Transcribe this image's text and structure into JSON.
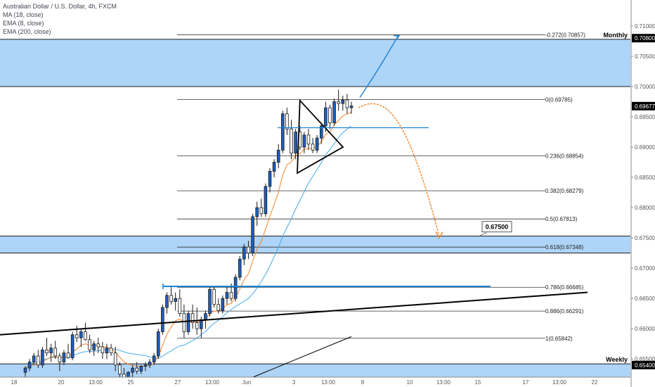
{
  "legend": {
    "title": "Australian Dollar / U.S. Dollar, 4h, FXCM",
    "ind1": "MA (18, close)",
    "ind2": "EMA (8, close)",
    "ind3": "EMA (200, close)"
  },
  "colors": {
    "zone": "#aed4f7",
    "up": "#1f5fbf",
    "down": "#ffffff",
    "ema8": "#f0862a",
    "ma18": "#45a9ea",
    "projection_up": "#1a84d6",
    "projection_down": "#f0862a",
    "axis_box": "#000000"
  },
  "chart_data": {
    "type": "candlestick",
    "symbol": "Australian Dollar / U.S. Dollar, 4h, FXCM",
    "y_ticks": [
      0.655,
      0.66,
      0.665,
      0.67,
      0.675,
      0.68,
      0.685,
      0.69,
      0.695,
      0.7,
      0.705,
      0.71
    ],
    "y_tick_labels": [
      "0.65500",
      "0.66000",
      "0.66500",
      "0.67000",
      "0.67500",
      "0.68000",
      "0.68500",
      "0.69000",
      "0.69500",
      "0.70000",
      "0.70500",
      "0.71000"
    ],
    "ylim": [
      0.652,
      0.7143
    ],
    "x_ticks": [
      "18",
      "20",
      "13:00",
      "25",
      "27",
      "13:00",
      "Jun",
      "3",
      "13:00",
      "8",
      "10",
      "13:00",
      "15",
      "17",
      "13:00",
      "22"
    ],
    "axis_price_labels": [
      {
        "text": "0.70800",
        "price": 0.708
      },
      {
        "text": "0.69677",
        "price": 0.69677
      },
      {
        "text": "0.65400",
        "price": 0.654
      }
    ],
    "zones": [
      {
        "label": "Monthly",
        "top": 0.7078,
        "bottom": 0.7
      },
      {
        "label": "",
        "top": 0.6753,
        "bottom": 0.6725
      },
      {
        "label": "Weekly",
        "top": 0.6542,
        "bottom": 0.651
      }
    ],
    "fib_levels": [
      {
        "label": "-0.272(0.70857)",
        "price": 0.70857
      },
      {
        "label": "0(0.69785)",
        "price": 0.69785
      },
      {
        "label": "0.236(0.68854)",
        "price": 0.68854
      },
      {
        "label": "0.382(0.68279)",
        "price": 0.68279
      },
      {
        "label": "0.5(0.67813)",
        "price": 0.67813
      },
      {
        "label": "0.618(0.67348)",
        "price": 0.67348
      },
      {
        "label": "0.786(0.66685)",
        "price": 0.66685
      },
      {
        "label": "0.886(0.66291)",
        "price": 0.66291
      },
      {
        "label": "1(0.65842)",
        "price": 0.65842
      }
    ],
    "callout": {
      "text": "0.67500",
      "price": 0.675
    },
    "candles": [
      [
        0.6528,
        0.6538,
        0.652,
        0.6535
      ],
      [
        0.6535,
        0.655,
        0.653,
        0.6545
      ],
      [
        0.6545,
        0.656,
        0.654,
        0.6555
      ],
      [
        0.6555,
        0.6565,
        0.6535,
        0.654
      ],
      [
        0.654,
        0.657,
        0.6535,
        0.6565
      ],
      [
        0.6565,
        0.6585,
        0.6555,
        0.656
      ],
      [
        0.656,
        0.6575,
        0.6545,
        0.6568
      ],
      [
        0.6568,
        0.658,
        0.655,
        0.6555
      ],
      [
        0.6555,
        0.656,
        0.653,
        0.6545
      ],
      [
        0.6545,
        0.6565,
        0.654,
        0.656
      ],
      [
        0.656,
        0.6575,
        0.655,
        0.6552
      ],
      [
        0.6552,
        0.6595,
        0.6548,
        0.659
      ],
      [
        0.659,
        0.6605,
        0.6578,
        0.6585
      ],
      [
        0.6585,
        0.66,
        0.657,
        0.6595
      ],
      [
        0.6595,
        0.661,
        0.658,
        0.6582
      ],
      [
        0.6582,
        0.659,
        0.656,
        0.6565
      ],
      [
        0.6565,
        0.658,
        0.6555,
        0.6575
      ],
      [
        0.6575,
        0.6585,
        0.656,
        0.657
      ],
      [
        0.657,
        0.6578,
        0.655,
        0.656
      ],
      [
        0.656,
        0.6575,
        0.655,
        0.6568
      ],
      [
        0.6568,
        0.6575,
        0.6555,
        0.656
      ],
      [
        0.656,
        0.657,
        0.653,
        0.654
      ],
      [
        0.654,
        0.6545,
        0.6515,
        0.6525
      ],
      [
        0.6525,
        0.6535,
        0.6512,
        0.6518
      ],
      [
        0.6518,
        0.653,
        0.6515,
        0.6528
      ],
      [
        0.6528,
        0.654,
        0.652,
        0.6535
      ],
      [
        0.6535,
        0.6545,
        0.6525,
        0.653
      ],
      [
        0.653,
        0.654,
        0.6525,
        0.6538
      ],
      [
        0.6538,
        0.6545,
        0.653,
        0.654
      ],
      [
        0.654,
        0.655,
        0.6535,
        0.6545
      ],
      [
        0.6545,
        0.656,
        0.654,
        0.6555
      ],
      [
        0.6555,
        0.66,
        0.655,
        0.6595
      ],
      [
        0.6595,
        0.664,
        0.659,
        0.6635
      ],
      [
        0.6635,
        0.666,
        0.6625,
        0.6655
      ],
      [
        0.6655,
        0.667,
        0.664,
        0.6645
      ],
      [
        0.6645,
        0.666,
        0.663,
        0.665
      ],
      [
        0.665,
        0.6665,
        0.662,
        0.6625
      ],
      [
        0.6625,
        0.664,
        0.6585,
        0.6595
      ],
      [
        0.6595,
        0.663,
        0.659,
        0.6625
      ],
      [
        0.6625,
        0.664,
        0.66,
        0.661
      ],
      [
        0.661,
        0.6635,
        0.659,
        0.66
      ],
      [
        0.66,
        0.662,
        0.6585,
        0.6615
      ],
      [
        0.6615,
        0.663,
        0.66,
        0.6625
      ],
      [
        0.6625,
        0.667,
        0.662,
        0.6665
      ],
      [
        0.6665,
        0.667,
        0.6635,
        0.664
      ],
      [
        0.664,
        0.665,
        0.6625,
        0.663
      ],
      [
        0.663,
        0.6655,
        0.6625,
        0.665
      ],
      [
        0.665,
        0.667,
        0.664,
        0.666
      ],
      [
        0.666,
        0.6675,
        0.6645,
        0.665
      ],
      [
        0.665,
        0.669,
        0.6645,
        0.6685
      ],
      [
        0.6685,
        0.672,
        0.668,
        0.6715
      ],
      [
        0.6715,
        0.674,
        0.6705,
        0.6735
      ],
      [
        0.6735,
        0.6745,
        0.6715,
        0.6725
      ],
      [
        0.6725,
        0.679,
        0.672,
        0.6785
      ],
      [
        0.6785,
        0.681,
        0.677,
        0.68
      ],
      [
        0.68,
        0.6815,
        0.6785,
        0.679
      ],
      [
        0.679,
        0.684,
        0.6785,
        0.6835
      ],
      [
        0.6835,
        0.6865,
        0.6825,
        0.686
      ],
      [
        0.686,
        0.688,
        0.685,
        0.6875
      ],
      [
        0.6875,
        0.6905,
        0.6865,
        0.6895
      ],
      [
        0.6895,
        0.696,
        0.689,
        0.6955
      ],
      [
        0.6955,
        0.6965,
        0.692,
        0.693
      ],
      [
        0.693,
        0.6945,
        0.688,
        0.689
      ],
      [
        0.689,
        0.693,
        0.688,
        0.6925
      ],
      [
        0.6925,
        0.6935,
        0.6895,
        0.69
      ],
      [
        0.69,
        0.6925,
        0.689,
        0.692
      ],
      [
        0.692,
        0.693,
        0.6895,
        0.6905
      ],
      [
        0.6905,
        0.6915,
        0.689,
        0.6895
      ],
      [
        0.6895,
        0.692,
        0.689,
        0.6915
      ],
      [
        0.6915,
        0.694,
        0.6905,
        0.6935
      ],
      [
        0.6935,
        0.6975,
        0.6925,
        0.6965
      ],
      [
        0.6965,
        0.697,
        0.693,
        0.694
      ],
      [
        0.694,
        0.698,
        0.6935,
        0.6975
      ],
      [
        0.6975,
        0.6995,
        0.696,
        0.6972
      ],
      [
        0.6972,
        0.6985,
        0.696,
        0.6978
      ],
      [
        0.6978,
        0.6988,
        0.6955,
        0.6965
      ],
      [
        0.6965,
        0.6975,
        0.6955,
        0.6968
      ]
    ]
  }
}
